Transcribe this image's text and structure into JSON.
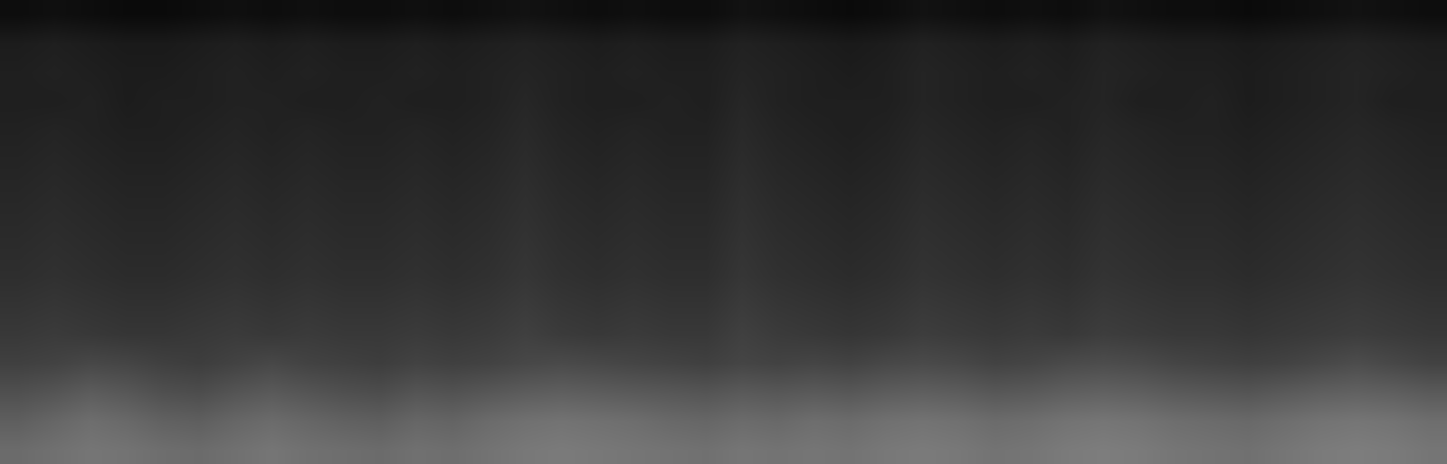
{
  "chart_data": {
    "type": "heatmap",
    "color": "#ffffff",
    "tick_labels": false,
    "grid": false,
    "zlim": [
      0,
      1
    ],
    "z": [
      [
        0.42,
        0.44,
        0.46,
        0.45,
        0.43,
        0.42,
        0.44,
        0.46,
        0.44,
        0.43,
        0.42,
        0.44,
        0.43,
        0.45,
        0.47,
        0.48,
        0.47,
        0.46,
        0.45,
        0.44,
        0.46,
        0.45,
        0.46,
        0.45,
        0.47,
        0.48,
        0.47,
        0.45,
        0.46,
        0.48,
        0.49,
        0.48,
        0.46,
        0.45,
        0.44,
        0.46,
        0.48,
        0.49,
        0.48,
        0.46
      ],
      [
        0.37,
        0.4,
        0.43,
        0.41,
        0.38,
        0.37,
        0.4,
        0.42,
        0.4,
        0.38,
        0.37,
        0.4,
        0.39,
        0.42,
        0.44,
        0.45,
        0.44,
        0.43,
        0.41,
        0.4,
        0.42,
        0.41,
        0.43,
        0.42,
        0.44,
        0.45,
        0.44,
        0.42,
        0.43,
        0.45,
        0.46,
        0.45,
        0.43,
        0.42,
        0.41,
        0.43,
        0.45,
        0.46,
        0.45,
        0.43
      ],
      [
        0.31,
        0.33,
        0.36,
        0.34,
        0.31,
        0.3,
        0.33,
        0.35,
        0.33,
        0.31,
        0.3,
        0.33,
        0.32,
        0.34,
        0.36,
        0.37,
        0.36,
        0.35,
        0.34,
        0.33,
        0.35,
        0.34,
        0.35,
        0.34,
        0.36,
        0.37,
        0.36,
        0.34,
        0.35,
        0.37,
        0.38,
        0.37,
        0.35,
        0.34,
        0.33,
        0.35,
        0.37,
        0.38,
        0.37,
        0.35
      ],
      [
        0.25,
        0.26,
        0.28,
        0.27,
        0.25,
        0.24,
        0.26,
        0.28,
        0.26,
        0.25,
        0.24,
        0.26,
        0.25,
        0.26,
        0.28,
        0.29,
        0.28,
        0.27,
        0.26,
        0.25,
        0.27,
        0.26,
        0.27,
        0.26,
        0.28,
        0.29,
        0.28,
        0.26,
        0.27,
        0.29,
        0.3,
        0.29,
        0.27,
        0.26,
        0.25,
        0.26,
        0.28,
        0.3,
        0.28,
        0.26
      ],
      [
        0.22,
        0.23,
        0.22,
        0.21,
        0.21,
        0.22,
        0.23,
        0.22,
        0.23,
        0.22,
        0.22,
        0.23,
        0.22,
        0.23,
        0.25,
        0.23,
        0.22,
        0.23,
        0.22,
        0.22,
        0.25,
        0.23,
        0.22,
        0.21,
        0.22,
        0.24,
        0.23,
        0.22,
        0.23,
        0.22,
        0.24,
        0.23,
        0.22,
        0.22,
        0.21,
        0.22,
        0.23,
        0.24,
        0.23,
        0.22
      ],
      [
        0.2,
        0.21,
        0.2,
        0.19,
        0.19,
        0.2,
        0.21,
        0.2,
        0.21,
        0.2,
        0.2,
        0.21,
        0.2,
        0.21,
        0.23,
        0.21,
        0.2,
        0.21,
        0.2,
        0.2,
        0.23,
        0.21,
        0.2,
        0.19,
        0.2,
        0.22,
        0.21,
        0.2,
        0.21,
        0.2,
        0.22,
        0.21,
        0.2,
        0.2,
        0.19,
        0.2,
        0.21,
        0.22,
        0.21,
        0.2
      ],
      [
        0.18,
        0.19,
        0.18,
        0.17,
        0.17,
        0.18,
        0.19,
        0.18,
        0.19,
        0.18,
        0.18,
        0.19,
        0.18,
        0.19,
        0.21,
        0.19,
        0.18,
        0.19,
        0.18,
        0.18,
        0.21,
        0.19,
        0.18,
        0.17,
        0.18,
        0.2,
        0.19,
        0.18,
        0.19,
        0.18,
        0.2,
        0.19,
        0.18,
        0.18,
        0.17,
        0.18,
        0.19,
        0.2,
        0.19,
        0.18
      ],
      [
        0.17,
        0.18,
        0.17,
        0.16,
        0.16,
        0.17,
        0.18,
        0.17,
        0.18,
        0.17,
        0.17,
        0.18,
        0.17,
        0.18,
        0.2,
        0.18,
        0.17,
        0.18,
        0.17,
        0.17,
        0.2,
        0.18,
        0.17,
        0.16,
        0.17,
        0.19,
        0.18,
        0.17,
        0.18,
        0.17,
        0.19,
        0.18,
        0.17,
        0.17,
        0.16,
        0.17,
        0.18,
        0.19,
        0.18,
        0.17
      ],
      [
        0.16,
        0.17,
        0.16,
        0.15,
        0.15,
        0.16,
        0.17,
        0.16,
        0.17,
        0.16,
        0.16,
        0.17,
        0.16,
        0.17,
        0.19,
        0.17,
        0.16,
        0.17,
        0.16,
        0.16,
        0.19,
        0.17,
        0.16,
        0.15,
        0.16,
        0.18,
        0.17,
        0.16,
        0.17,
        0.16,
        0.18,
        0.17,
        0.16,
        0.16,
        0.15,
        0.16,
        0.17,
        0.18,
        0.17,
        0.16
      ],
      [
        0.15,
        0.16,
        0.15,
        0.14,
        0.14,
        0.15,
        0.16,
        0.15,
        0.16,
        0.15,
        0.15,
        0.16,
        0.15,
        0.16,
        0.18,
        0.16,
        0.15,
        0.16,
        0.15,
        0.15,
        0.18,
        0.16,
        0.15,
        0.14,
        0.15,
        0.17,
        0.16,
        0.15,
        0.16,
        0.15,
        0.17,
        0.16,
        0.15,
        0.15,
        0.14,
        0.15,
        0.16,
        0.17,
        0.16,
        0.15
      ],
      [
        0.14,
        0.15,
        0.14,
        0.13,
        0.13,
        0.14,
        0.15,
        0.14,
        0.15,
        0.14,
        0.14,
        0.15,
        0.14,
        0.15,
        0.17,
        0.15,
        0.14,
        0.15,
        0.14,
        0.14,
        0.17,
        0.15,
        0.14,
        0.13,
        0.14,
        0.16,
        0.15,
        0.14,
        0.15,
        0.14,
        0.16,
        0.15,
        0.14,
        0.14,
        0.13,
        0.14,
        0.15,
        0.16,
        0.15,
        0.14
      ],
      [
        0.13,
        0.14,
        0.13,
        0.12,
        0.12,
        0.13,
        0.14,
        0.13,
        0.14,
        0.13,
        0.13,
        0.14,
        0.13,
        0.14,
        0.16,
        0.14,
        0.13,
        0.14,
        0.13,
        0.13,
        0.16,
        0.14,
        0.13,
        0.12,
        0.13,
        0.15,
        0.14,
        0.13,
        0.14,
        0.13,
        0.15,
        0.14,
        0.13,
        0.13,
        0.12,
        0.13,
        0.14,
        0.15,
        0.14,
        0.13
      ],
      [
        0.12,
        0.12,
        0.13,
        0.11,
        0.12,
        0.12,
        0.13,
        0.13,
        0.12,
        0.12,
        0.13,
        0.12,
        0.12,
        0.13,
        0.15,
        0.13,
        0.12,
        0.12,
        0.13,
        0.12,
        0.15,
        0.13,
        0.12,
        0.12,
        0.12,
        0.14,
        0.13,
        0.12,
        0.12,
        0.13,
        0.14,
        0.12,
        0.12,
        0.13,
        0.11,
        0.12,
        0.13,
        0.14,
        0.12,
        0.12
      ],
      [
        0.12,
        0.13,
        0.12,
        0.11,
        0.11,
        0.12,
        0.13,
        0.12,
        0.13,
        0.12,
        0.12,
        0.13,
        0.12,
        0.13,
        0.14,
        0.13,
        0.12,
        0.13,
        0.12,
        0.12,
        0.14,
        0.13,
        0.12,
        0.11,
        0.12,
        0.14,
        0.13,
        0.12,
        0.13,
        0.12,
        0.14,
        0.13,
        0.12,
        0.12,
        0.11,
        0.12,
        0.13,
        0.14,
        0.13,
        0.12
      ],
      [
        0.11,
        0.12,
        0.11,
        0.1,
        0.1,
        0.11,
        0.12,
        0.11,
        0.12,
        0.11,
        0.11,
        0.12,
        0.11,
        0.12,
        0.13,
        0.12,
        0.11,
        0.12,
        0.11,
        0.11,
        0.13,
        0.12,
        0.11,
        0.1,
        0.11,
        0.13,
        0.12,
        0.11,
        0.12,
        0.11,
        0.13,
        0.12,
        0.11,
        0.11,
        0.1,
        0.11,
        0.12,
        0.13,
        0.12,
        0.11
      ],
      [
        0.05,
        0.06,
        0.05,
        0.04,
        0.04,
        0.05,
        0.06,
        0.05,
        0.06,
        0.05,
        0.05,
        0.06,
        0.05,
        0.06,
        0.07,
        0.06,
        0.05,
        0.06,
        0.05,
        0.05,
        0.07,
        0.06,
        0.05,
        0.04,
        0.05,
        0.07,
        0.06,
        0.05,
        0.06,
        0.05,
        0.07,
        0.06,
        0.05,
        0.05,
        0.04,
        0.05,
        0.06,
        0.07,
        0.06,
        0.05
      ]
    ]
  }
}
